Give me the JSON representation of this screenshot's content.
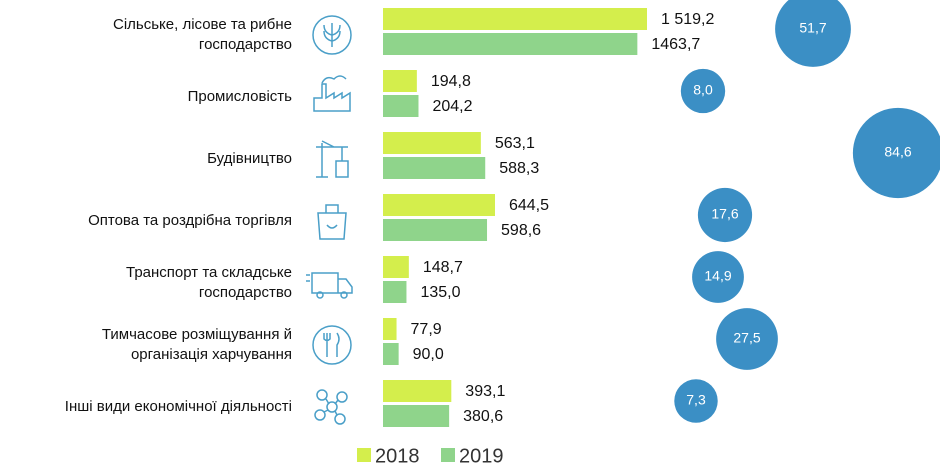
{
  "chart_data": {
    "type": "bar",
    "categories": [
      "Сільське, лісове та рибне\nгосподарство",
      "Промисловість",
      "Будівництво",
      "Оптова та роздрібна торгівля",
      "Транспорт та складське\nгосподарство",
      "Тимчасове розміщування й\nорганізація харчування",
      "Інші види економічної діяльності"
    ],
    "series": [
      {
        "name": "2018",
        "color": "#d4ee4c",
        "values": [
          1519.2,
          194.8,
          563.1,
          644.5,
          148.7,
          77.9,
          393.1
        ],
        "value_labels": [
          "1 519,2",
          "194,8",
          "563,1",
          "644,5",
          "148,7",
          "77,9",
          "393,1"
        ]
      },
      {
        "name": "2019",
        "color": "#8fd48b",
        "values": [
          1463.7,
          204.2,
          588.3,
          598.6,
          135.0,
          90.0,
          380.6
        ],
        "value_labels": [
          "1463,7",
          "204,2",
          "588,3",
          "598,6",
          "135,0",
          "90,0",
          "380,6"
        ]
      }
    ],
    "bubbles": {
      "color": "#3b8fc5",
      "values": [
        51.7,
        8.0,
        84.6,
        17.6,
        14.9,
        27.5,
        7.3
      ],
      "value_labels": [
        "51,7",
        "8,0",
        "84,6",
        "17,6",
        "14,9",
        "27,5",
        "7,3"
      ]
    }
  }
}
